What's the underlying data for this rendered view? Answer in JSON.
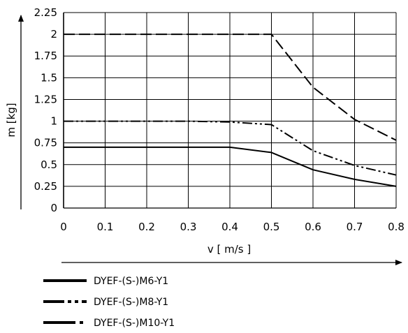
{
  "chart_data": {
    "type": "line",
    "xlabel": "v [ m/s ]",
    "ylabel": "m [kg]",
    "xlim": [
      0,
      0.8
    ],
    "ylim": [
      0,
      2.25
    ],
    "grid": true,
    "legend_placement": "bottom-left",
    "x_ticks": [
      "0",
      "0.1",
      "0.2",
      "0.3",
      "0.4",
      "0.5",
      "0.6",
      "0.7",
      "0.8"
    ],
    "y_ticks": [
      "0",
      "0.25",
      "0.5",
      "0.75",
      "1",
      "1.25",
      "1.5",
      "1.75",
      "2",
      "2.25"
    ],
    "series": [
      {
        "name": "DYEF-(S-)M6-Y1",
        "style": "solid",
        "x": [
          0,
          0.1,
          0.2,
          0.3,
          0.4,
          0.5,
          0.6,
          0.7,
          0.8
        ],
        "y": [
          0.7,
          0.7,
          0.7,
          0.7,
          0.7,
          0.64,
          0.44,
          0.33,
          0.25
        ]
      },
      {
        "name": "DYEF-(S-)M8-Y1",
        "style": "dash-dot-dot",
        "x": [
          0,
          0.1,
          0.2,
          0.3,
          0.4,
          0.5,
          0.6,
          0.7,
          0.8
        ],
        "y": [
          1.0,
          1.0,
          1.0,
          1.0,
          0.99,
          0.96,
          0.66,
          0.49,
          0.38
        ]
      },
      {
        "name": "DYEF-(S-)M10-Y1",
        "style": "dashed",
        "x": [
          0,
          0.1,
          0.2,
          0.3,
          0.4,
          0.5,
          0.6,
          0.7,
          0.8
        ],
        "y": [
          2.0,
          2.0,
          2.0,
          2.0,
          2.0,
          2.0,
          1.39,
          1.02,
          0.78
        ]
      }
    ]
  }
}
